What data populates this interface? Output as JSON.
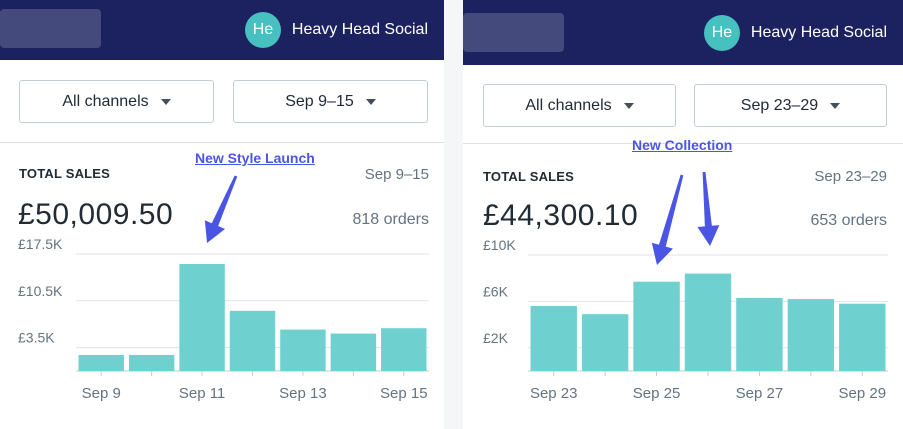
{
  "store": {
    "initials": "He",
    "name": "Heavy Head Social"
  },
  "colors": {
    "topbar": "#1c2260",
    "avatar": "#47c1bf",
    "bar": "#6ed0cf",
    "annotation": "#4a55e6"
  },
  "panels": [
    {
      "filters": {
        "channel": "All channels",
        "date": "Sep 9–15"
      },
      "summary": {
        "label": "TOTAL SALES",
        "range": "Sep 9–15",
        "amount": "£50,009.50",
        "orders": "818 orders"
      },
      "annotation": {
        "text": "New Style Launch",
        "arrow_targets": [
          "Sep 11"
        ]
      },
      "chart_data": {
        "type": "bar",
        "categories": [
          "Sep 9",
          "Sep 10",
          "Sep 11",
          "Sep 12",
          "Sep 13",
          "Sep 14",
          "Sep 15"
        ],
        "values": [
          2400,
          2400,
          16000,
          9000,
          6200,
          5600,
          6400
        ],
        "x_tick_labels": [
          "Sep 9",
          "",
          "Sep 11",
          "",
          "Sep 13",
          "",
          "Sep 15"
        ],
        "y_ticks": [
          3500,
          10500,
          17500
        ],
        "y_tick_labels": [
          "£3.5K",
          "£10.5K",
          "£17.5K"
        ],
        "ylim": [
          0,
          17500
        ],
        "grid": true
      }
    },
    {
      "filters": {
        "channel": "All channels",
        "date": "Sep 23–29"
      },
      "summary": {
        "label": "TOTAL SALES",
        "range": "Sep 23–29",
        "amount": "£44,300.10",
        "orders": "653 orders"
      },
      "annotation": {
        "text": "New Collection",
        "arrow_targets": [
          "Sep 25",
          "Sep 26"
        ]
      },
      "chart_data": {
        "type": "bar",
        "categories": [
          "Sep 23",
          "Sep 24",
          "Sep 25",
          "Sep 26",
          "Sep 27",
          "Sep 28",
          "Sep 29"
        ],
        "values": [
          5600,
          4900,
          7700,
          8400,
          6300,
          6200,
          5800
        ],
        "x_tick_labels": [
          "Sep 23",
          "",
          "Sep 25",
          "",
          "Sep 27",
          "",
          "Sep 29"
        ],
        "y_ticks": [
          2000,
          6000,
          10000
        ],
        "y_tick_labels": [
          "£2K",
          "£6K",
          "£10K"
        ],
        "ylim": [
          0,
          10000
        ],
        "grid": true
      }
    }
  ]
}
